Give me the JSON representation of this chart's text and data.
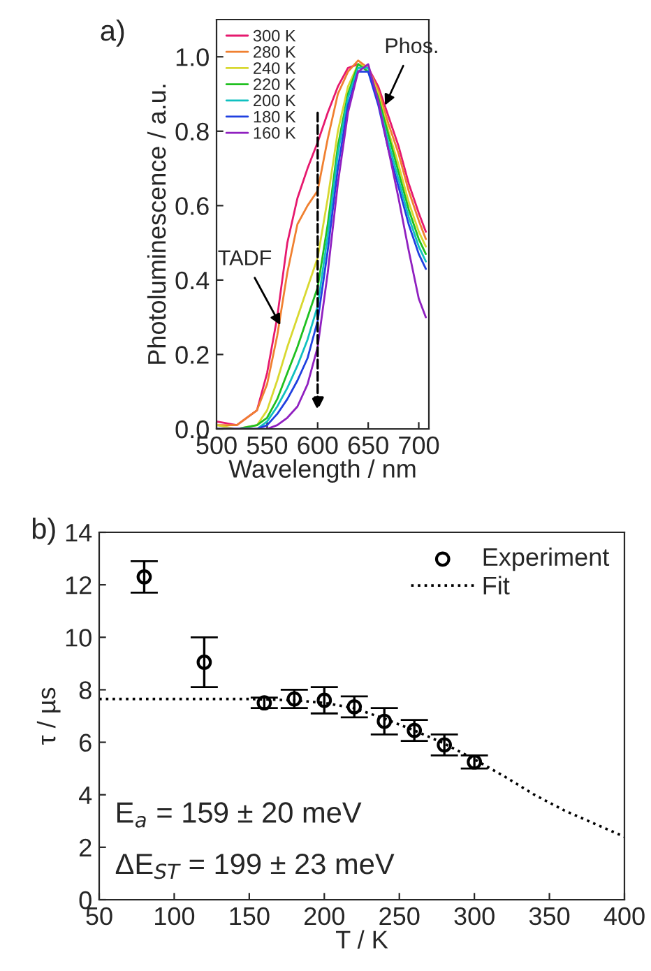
{
  "chart_data": [
    {
      "type": "line",
      "xlabel": "Wavelength / nm",
      "ylabel": "Photoluminescence / a.u.",
      "xlim": [
        500,
        710
      ],
      "xticks": [
        500,
        550,
        600,
        650,
        700
      ],
      "ylim": [
        0,
        1.1
      ],
      "yticks": [
        {
          "value": 0,
          "label": "0.0"
        },
        0.2,
        0.4,
        0.6,
        0.8,
        {
          "value": 1,
          "label": "1.0"
        }
      ],
      "legend": "top left",
      "grid": false,
      "line_style": "solid",
      "marker": "none",
      "x": [
        500,
        520,
        540,
        550,
        560,
        570,
        580,
        590,
        600,
        610,
        620,
        630,
        640,
        650,
        660,
        670,
        680,
        690,
        700,
        707
      ],
      "series": [
        {
          "name": "300 K",
          "color": "#e6196e",
          "values": [
            0.02,
            0.01,
            0.05,
            0.15,
            0.3,
            0.5,
            0.62,
            0.7,
            0.77,
            0.85,
            0.92,
            0.97,
            0.98,
            0.97,
            0.92,
            0.84,
            0.76,
            0.66,
            0.58,
            0.53
          ]
        },
        {
          "name": "280 K",
          "color": "#f08030",
          "values": [
            0.01,
            0.01,
            0.05,
            0.12,
            0.25,
            0.42,
            0.55,
            0.6,
            0.64,
            0.78,
            0.9,
            0.96,
            0.99,
            0.97,
            0.91,
            0.82,
            0.74,
            0.64,
            0.56,
            0.51
          ]
        },
        {
          "name": "240 K",
          "color": "#d8d830",
          "values": [
            0.01,
            0.0,
            0.01,
            0.05,
            0.13,
            0.22,
            0.3,
            0.38,
            0.46,
            0.62,
            0.8,
            0.92,
            0.98,
            0.97,
            0.9,
            0.8,
            0.71,
            0.61,
            0.53,
            0.49
          ]
        },
        {
          "name": "220 K",
          "color": "#20c020",
          "values": [
            0,
            0,
            0.01,
            0.03,
            0.08,
            0.15,
            0.22,
            0.3,
            0.38,
            0.55,
            0.76,
            0.9,
            0.98,
            0.96,
            0.89,
            0.79,
            0.69,
            0.59,
            0.51,
            0.47
          ]
        },
        {
          "name": "200 K",
          "color": "#10c0c0",
          "values": [
            0,
            0,
            0,
            0.02,
            0.06,
            0.11,
            0.17,
            0.24,
            0.33,
            0.52,
            0.74,
            0.89,
            0.97,
            0.97,
            0.88,
            0.77,
            0.67,
            0.57,
            0.49,
            0.45
          ]
        },
        {
          "name": "180 K",
          "color": "#2040e0",
          "values": [
            0,
            0,
            0,
            0.01,
            0.04,
            0.08,
            0.13,
            0.19,
            0.29,
            0.48,
            0.7,
            0.87,
            0.96,
            0.96,
            0.87,
            0.75,
            0.65,
            0.55,
            0.47,
            0.43
          ]
        },
        {
          "name": "160 K",
          "color": "#9020c0",
          "values": [
            0,
            0,
            0,
            0,
            0.01,
            0.03,
            0.06,
            0.12,
            0.22,
            0.42,
            0.66,
            0.85,
            0.96,
            0.98,
            0.88,
            0.75,
            0.62,
            0.48,
            0.35,
            0.3
          ]
        }
      ],
      "annotations": [
        "a)",
        {
          "text": "TADF",
          "x": 565,
          "y": 0.27
        },
        {
          "text": "Phos.",
          "x": 665,
          "y": 0.86
        }
      ]
    },
    {
      "type": "scatter",
      "xlabel": "T / K",
      "ylabel": "τ / µs",
      "xlim": [
        50,
        400
      ],
      "xticks": [
        50,
        100,
        150,
        200,
        250,
        300,
        350,
        400
      ],
      "ylim": [
        0,
        14
      ],
      "yticks": [
        0,
        2,
        4,
        6,
        8,
        10,
        12,
        14
      ],
      "legend": "top right",
      "grid": false,
      "series": [
        {
          "name": "Experiment",
          "type": "scatter",
          "marker": "circle",
          "color": "#000000",
          "x": [
            80,
            120,
            160,
            180,
            200,
            220,
            240,
            260,
            280,
            300
          ],
          "values": [
            12.3,
            9.05,
            7.5,
            7.65,
            7.6,
            7.35,
            6.8,
            6.45,
            5.9,
            5.25
          ],
          "errors": [
            [
              11.7,
              12.9
            ],
            [
              8.1,
              10.0
            ],
            [
              7.3,
              7.7
            ],
            [
              7.3,
              8.0
            ],
            [
              7.1,
              8.1
            ],
            [
              6.95,
              7.75
            ],
            [
              6.3,
              7.3
            ],
            [
              6.05,
              6.85
            ],
            [
              5.5,
              6.3
            ],
            [
              5.0,
              5.5
            ]
          ]
        },
        {
          "name": "Fit",
          "type": "line",
          "line_style": "dotted",
          "color": "#000000",
          "x": [
            50,
            100,
            150,
            180,
            200,
            220,
            240,
            260,
            280,
            300,
            320,
            340,
            360,
            380,
            400
          ],
          "values": [
            7.65,
            7.65,
            7.65,
            7.6,
            7.5,
            7.3,
            6.9,
            6.45,
            5.95,
            5.35,
            4.7,
            4.0,
            3.4,
            2.9,
            2.4
          ]
        }
      ],
      "annotations": [
        "b)",
        "E$_{a}$ = 159 ± 20 meV",
        "ΔE$_{ST}$ = 199 ± 23 meV"
      ]
    }
  ]
}
